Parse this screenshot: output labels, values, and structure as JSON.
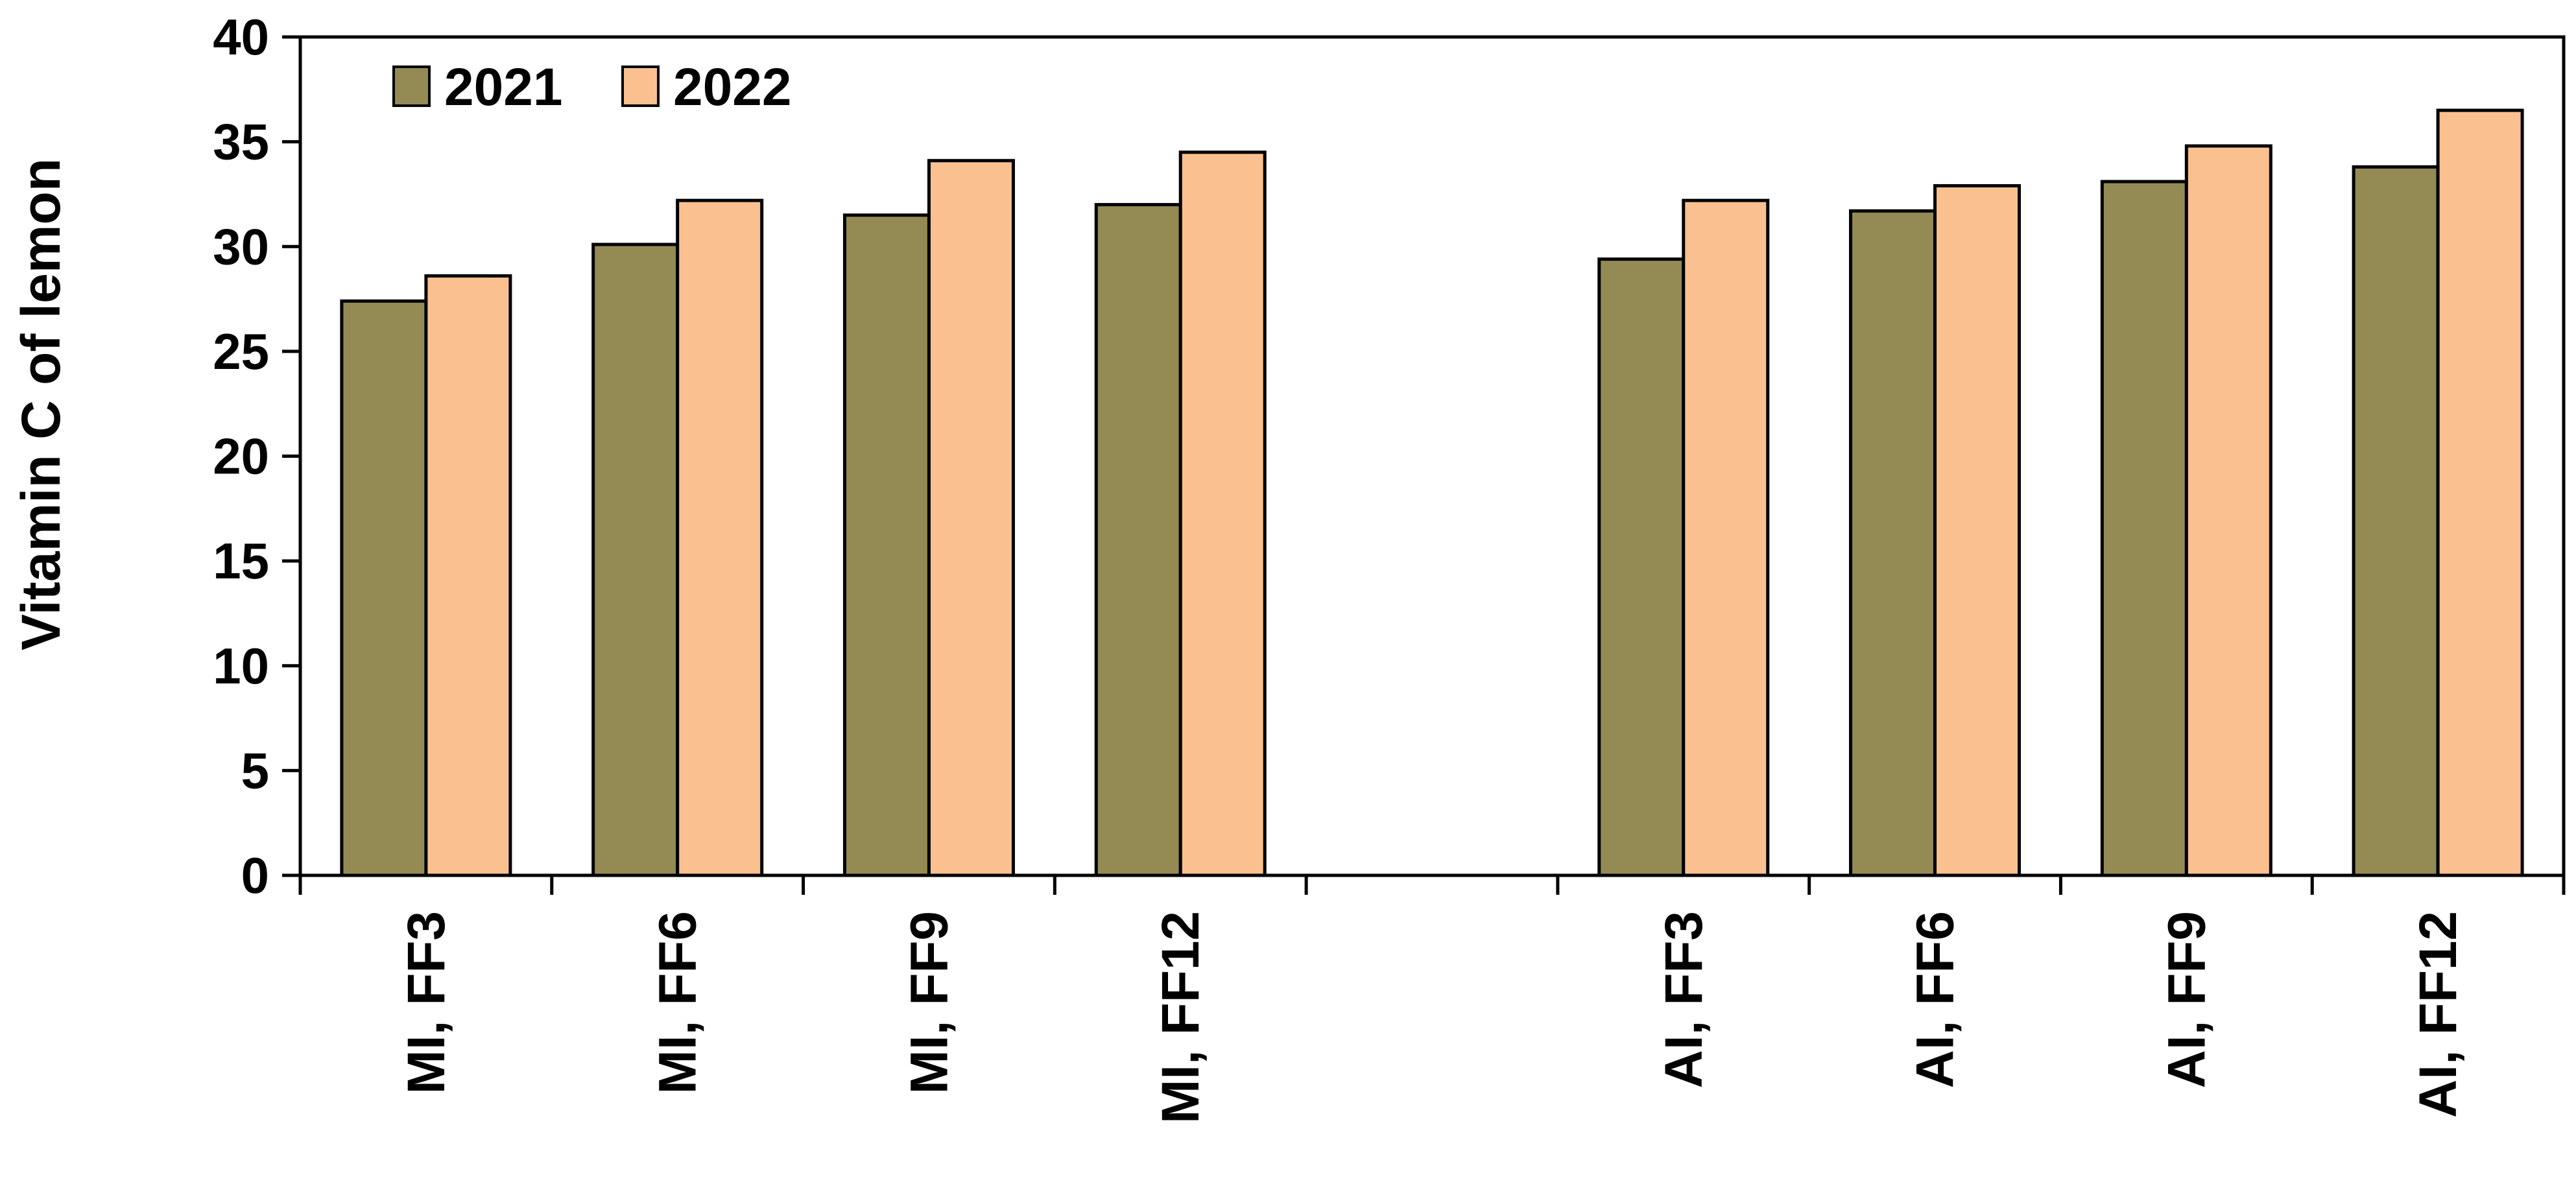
{
  "chart_data": {
    "type": "bar",
    "title": "",
    "xlabel": "",
    "ylabel": "Vitamin C of lemon",
    "ylim": [
      0,
      40
    ],
    "yticks": [
      0,
      5,
      10,
      15,
      20,
      25,
      30,
      35,
      40
    ],
    "grid": false,
    "legend_position": "top-left",
    "categories": [
      "MI, FF3",
      "MI, FF6",
      "MI, FF9",
      "MI, FF12",
      "",
      "AI, FF3",
      "AI, FF6",
      "AI, FF9",
      "AI, FF12"
    ],
    "series": [
      {
        "name": "2021",
        "color": "#948a54",
        "values": [
          27.4,
          30.1,
          31.5,
          32.0,
          null,
          29.4,
          31.7,
          33.1,
          33.8
        ]
      },
      {
        "name": "2022",
        "color": "#fac090",
        "values": [
          28.6,
          32.2,
          34.1,
          34.5,
          null,
          32.2,
          32.9,
          34.8,
          36.5
        ]
      }
    ]
  }
}
